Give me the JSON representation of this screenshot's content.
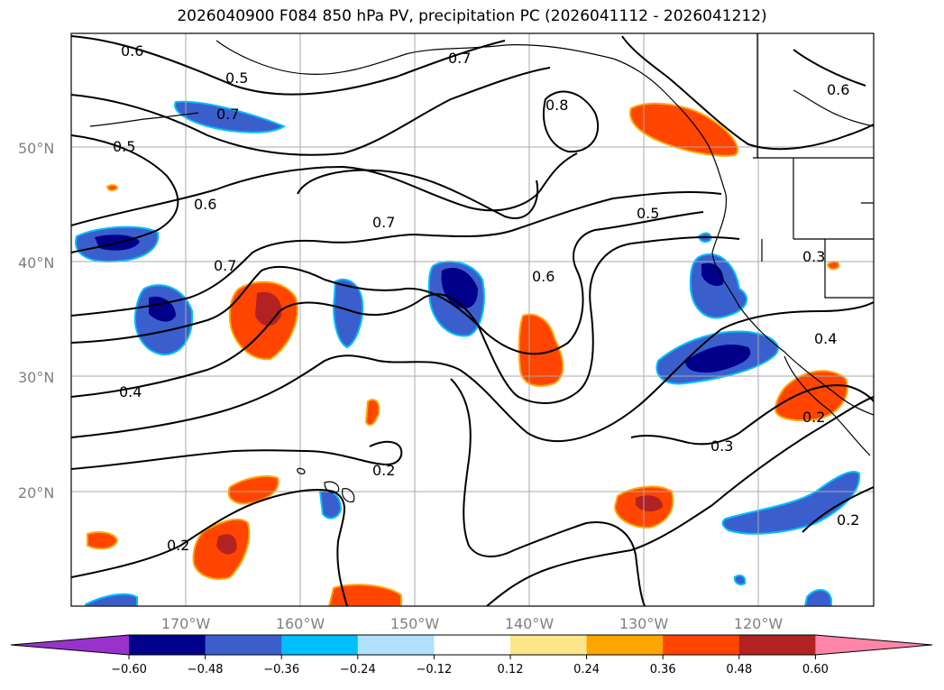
{
  "title": "2026040900 F084 850 hPa PV, precipitation PC (2026041112 - 2026041212)",
  "lat_labels": [
    "50°N",
    "40°N",
    "30°N",
    "20°N"
  ],
  "lon_labels": [
    "170°W",
    "160°W",
    "150°W",
    "140°W",
    "130°W",
    "120°W"
  ],
  "colorbar": {
    "ticks": [
      "−0.60",
      "−0.48",
      "−0.36",
      "−0.24",
      "−0.12",
      "0.12",
      "0.24",
      "0.36",
      "0.48",
      "0.60"
    ],
    "colors": [
      "#9932cc",
      "#00008b",
      "#3a5fcd",
      "#00bfff",
      "#b0e2ff",
      "#ffffff",
      "#fde68a",
      "#ffa500",
      "#ff4500",
      "#b22222",
      "#ff85a8"
    ]
  },
  "contour_labels": [
    "0.6",
    "0.5",
    "0.7",
    "0.5",
    "0.7",
    "0.8",
    "0.6",
    "0.6",
    "0.7",
    "0.5",
    "0.7",
    "0.6",
    "0.4",
    "0.3",
    "0.4",
    "0.2",
    "0.2",
    "0.3",
    "0.2",
    "0.2"
  ],
  "colors": {
    "pos_strong": "#ff4500",
    "pos_max": "#b22222",
    "neg_med": "#3a5fcd",
    "neg_strong": "#00008b",
    "contour": "#000000",
    "grid": "#a9a9a9"
  }
}
